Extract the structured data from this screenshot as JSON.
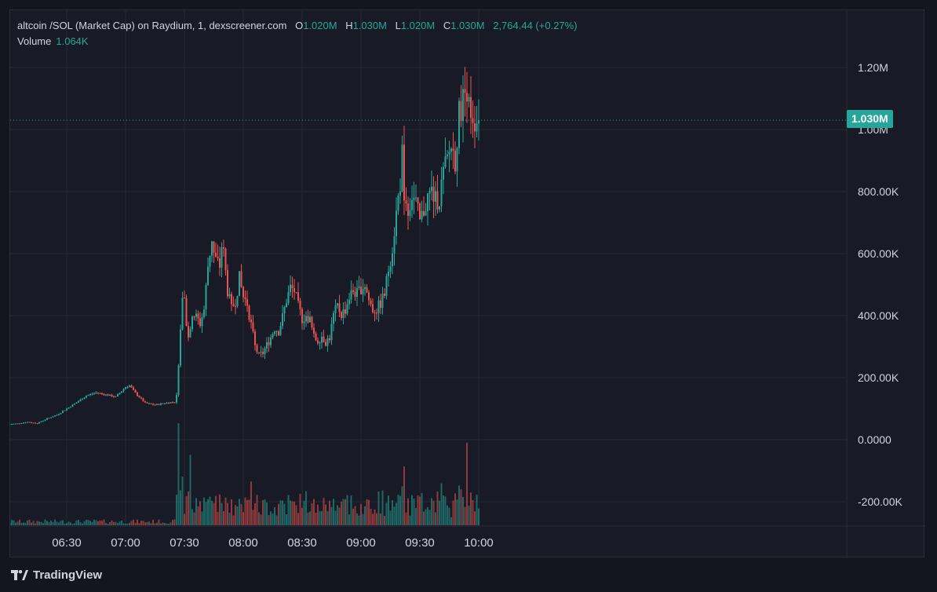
{
  "legend": {
    "symbol": "altcoin /SOL (Market Cap) on Raydium, 1, dexscreener.com",
    "o_label": "O",
    "o_value": "1.020M",
    "h_label": "H",
    "h_value": "1.030M",
    "l_label": "L",
    "l_value": "1.020M",
    "c_label": "C",
    "c_value": "1.030M",
    "change": "2,764.44 (+0.27%)",
    "volume_label": "Volume",
    "volume_value": "1.064K"
  },
  "last_price_label": "1.030M",
  "branding": "TradingView",
  "colors": {
    "up": "#26a69a",
    "down": "#ef5350",
    "background": "#181b25",
    "grid": "#242833",
    "axis_text": "#d1d4dc"
  },
  "chart_data": {
    "type": "candlestick",
    "x_unit": "minutes since 06:00",
    "y_unit": "market cap",
    "ylim": [
      -270000,
      1340000
    ],
    "yticks": [
      {
        "value": 1200000,
        "label": "1.20M"
      },
      {
        "value": 1000000,
        "label": "1.00M"
      },
      {
        "value": 800000,
        "label": "800.00K"
      },
      {
        "value": 600000,
        "label": "600.00K"
      },
      {
        "value": 400000,
        "label": "400.00K"
      },
      {
        "value": 200000,
        "label": "200.00K"
      },
      {
        "value": 0,
        "label": "0.0000"
      },
      {
        "value": -200000,
        "label": "-200.00K"
      }
    ],
    "xticks": [
      {
        "minute": 30,
        "label": "06:30"
      },
      {
        "minute": 60,
        "label": "07:00"
      },
      {
        "minute": 90,
        "label": "07:30"
      },
      {
        "minute": 120,
        "label": "08:00"
      },
      {
        "minute": 150,
        "label": "08:30"
      },
      {
        "minute": 180,
        "label": "09:00"
      },
      {
        "minute": 210,
        "label": "09:30"
      },
      {
        "minute": 240,
        "label": "10:00"
      }
    ],
    "xlim": [
      0,
      258
    ],
    "last_price": 1030000,
    "series_close": [
      [
        0,
        50000
      ],
      [
        5,
        52000
      ],
      [
        10,
        57000
      ],
      [
        15,
        53000
      ],
      [
        20,
        68000
      ],
      [
        25,
        80000
      ],
      [
        30,
        100000
      ],
      [
        35,
        120000
      ],
      [
        40,
        142000
      ],
      [
        45,
        152000
      ],
      [
        50,
        145000
      ],
      [
        55,
        138000
      ],
      [
        60,
        170000
      ],
      [
        62,
        175000
      ],
      [
        65,
        150000
      ],
      [
        70,
        118000
      ],
      [
        75,
        112000
      ],
      [
        80,
        118000
      ],
      [
        85,
        122000
      ],
      [
        86,
        140000
      ],
      [
        87,
        250000
      ],
      [
        88,
        370000
      ],
      [
        89,
        440000
      ],
      [
        90,
        450000
      ],
      [
        91,
        380000
      ],
      [
        92,
        330000
      ],
      [
        93,
        370000
      ],
      [
        94,
        410000
      ],
      [
        96,
        395000
      ],
      [
        98,
        375000
      ],
      [
        100,
        420000
      ],
      [
        102,
        560000
      ],
      [
        104,
        650000
      ],
      [
        105,
        600000
      ],
      [
        106,
        580000
      ],
      [
        108,
        560000
      ],
      [
        109,
        625000
      ],
      [
        110,
        600000
      ],
      [
        112,
        480000
      ],
      [
        114,
        420000
      ],
      [
        116,
        450000
      ],
      [
        118,
        520000
      ],
      [
        120,
        460000
      ],
      [
        122,
        440000
      ],
      [
        124,
        370000
      ],
      [
        126,
        300000
      ],
      [
        128,
        270000
      ],
      [
        130,
        280000
      ],
      [
        132,
        305000
      ],
      [
        134,
        330000
      ],
      [
        136,
        360000
      ],
      [
        138,
        350000
      ],
      [
        140,
        395000
      ],
      [
        142,
        450000
      ],
      [
        144,
        490000
      ],
      [
        146,
        480000
      ],
      [
        148,
        430000
      ],
      [
        150,
        390000
      ],
      [
        152,
        400000
      ],
      [
        154,
        385000
      ],
      [
        156,
        330000
      ],
      [
        158,
        320000
      ],
      [
        160,
        335000
      ],
      [
        162,
        315000
      ],
      [
        164,
        330000
      ],
      [
        166,
        400000
      ],
      [
        168,
        430000
      ],
      [
        170,
        405000
      ],
      [
        172,
        420000
      ],
      [
        174,
        460000
      ],
      [
        176,
        480000
      ],
      [
        178,
        470000
      ],
      [
        180,
        490000
      ],
      [
        182,
        500000
      ],
      [
        184,
        450000
      ],
      [
        186,
        420000
      ],
      [
        188,
        420000
      ],
      [
        190,
        440000
      ],
      [
        192,
        470000
      ],
      [
        194,
        550000
      ],
      [
        196,
        620000
      ],
      [
        198,
        730000
      ],
      [
        200,
        830000
      ],
      [
        201,
        920000
      ],
      [
        202,
        800000
      ],
      [
        204,
        740000
      ],
      [
        206,
        790000
      ],
      [
        208,
        760000
      ],
      [
        210,
        700000
      ],
      [
        212,
        740000
      ],
      [
        214,
        780000
      ],
      [
        216,
        800000
      ],
      [
        218,
        770000
      ],
      [
        220,
        780000
      ],
      [
        222,
        860000
      ],
      [
        224,
        900000
      ],
      [
        226,
        950000
      ],
      [
        228,
        900000
      ],
      [
        230,
        1050000
      ],
      [
        232,
        1100000
      ],
      [
        234,
        1140000
      ],
      [
        235,
        1080000
      ],
      [
        236,
        1060000
      ],
      [
        238,
        1030000
      ],
      [
        240,
        1030000
      ]
    ],
    "volume_highlights": [
      {
        "minute": 87,
        "volume": 210000
      },
      {
        "minute": 89,
        "volume": 100000
      },
      {
        "minute": 93,
        "volume": 145000
      },
      {
        "minute": 124,
        "volume": 90000
      },
      {
        "minute": 152,
        "volume": 70000
      },
      {
        "minute": 201,
        "volume": 80000
      },
      {
        "minute": 234,
        "volume": 170000
      }
    ]
  }
}
